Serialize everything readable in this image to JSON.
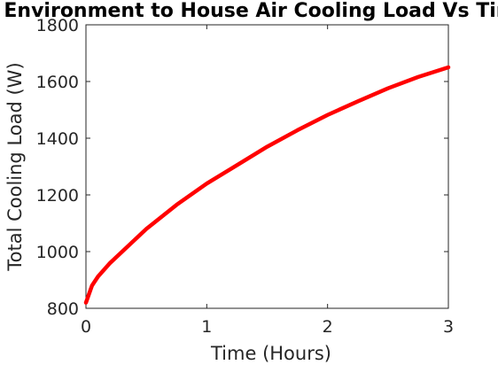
{
  "chart_data": {
    "type": "line",
    "title": "Environment to House Air Cooling Load Vs Time",
    "xlabel": "Time (Hours)",
    "ylabel": "Total Cooling Load (W)",
    "xlim": [
      0,
      3
    ],
    "ylim": [
      800,
      1800
    ],
    "xticks": [
      0,
      1,
      2,
      3
    ],
    "yticks": [
      800,
      1000,
      1200,
      1400,
      1600,
      1800
    ],
    "xtick_labels": [
      "0",
      "1",
      "2",
      "3"
    ],
    "ytick_labels": [
      "800",
      "1000",
      "1200",
      "1400",
      "1600",
      "1800"
    ],
    "grid": false,
    "legend": "none",
    "series": [
      {
        "color": "#ff0000",
        "x": [
          0,
          0.05,
          0.1,
          0.2,
          0.3,
          0.5,
          0.75,
          1.0,
          1.25,
          1.5,
          1.75,
          2.0,
          2.25,
          2.5,
          2.75,
          3.0
        ],
        "y": [
          820,
          880,
          912,
          960,
          1000,
          1080,
          1165,
          1240,
          1305,
          1370,
          1428,
          1482,
          1530,
          1576,
          1616,
          1650
        ]
      }
    ]
  }
}
